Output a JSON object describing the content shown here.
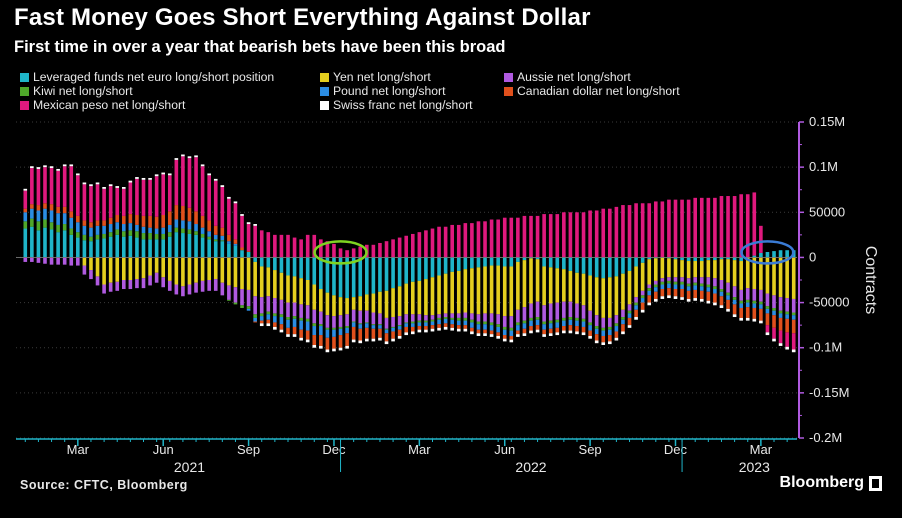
{
  "title": "Fast Money Goes Short Everything Against Dollar",
  "subtitle": "First time in over a year that bearish bets have been this broad",
  "source": "Source: CFTC, Bloomberg",
  "brand": "Bloomberg",
  "chart_data": {
    "type": "bar",
    "stacked": true,
    "ylabel": "Contracts",
    "ylim": [
      -200000,
      150000
    ],
    "y_ticks": [
      {
        "value": 150000,
        "label": "0.15M"
      },
      {
        "value": 100000,
        "label": "0.1M"
      },
      {
        "value": 50000,
        "label": "50000"
      },
      {
        "value": 0,
        "label": "0"
      },
      {
        "value": -50000,
        "label": "-50000"
      },
      {
        "value": -100000,
        "label": "-0.1M"
      },
      {
        "value": -150000,
        "label": "-0.15M"
      },
      {
        "value": -200000,
        "label": "-0.2M"
      }
    ],
    "x_ticks": [
      "Mar",
      "Jun",
      "Sep",
      "Dec",
      "Mar",
      "Jun",
      "Sep",
      "Dec",
      "Mar"
    ],
    "x_tick_weeks": [
      8,
      21,
      34,
      47,
      60,
      73,
      86,
      99,
      112
    ],
    "years": [
      {
        "label": "2021",
        "week": 25
      },
      {
        "label": "2022",
        "week": 77
      },
      {
        "label": "2023",
        "week": 111
      }
    ],
    "year_boundaries": [
      48,
      100
    ],
    "annotations": [
      {
        "shape": "ellipse",
        "color": "#7ed321",
        "week": 48
      },
      {
        "shape": "ellipse",
        "color": "#3a7bd5",
        "week": 113
      }
    ],
    "series": [
      {
        "name": "Leveraged funds net euro long/short position",
        "color": "#1fb5c9",
        "values": [
          32000,
          34000,
          30000,
          33000,
          31000,
          28000,
          30000,
          25000,
          22000,
          19000,
          18000,
          20000,
          21000,
          23000,
          25000,
          23000,
          24000,
          22000,
          20000,
          20000,
          20000,
          20000,
          23000,
          28000,
          27000,
          26000,
          25000,
          22000,
          20000,
          18000,
          18000,
          15000,
          13000,
          8000,
          6000,
          -5000,
          -10000,
          -11000,
          -14000,
          -17000,
          -20000,
          -21000,
          -23000,
          -25000,
          -30000,
          -35000,
          -39000,
          -42000,
          -44000,
          -45000,
          -44000,
          -43000,
          -41000,
          -40000,
          -38000,
          -37000,
          -34000,
          -32000,
          -29000,
          -27000,
          -26000,
          -24000,
          -22000,
          -20000,
          -18000,
          -16000,
          -15000,
          -13000,
          -12000,
          -11000,
          -10000,
          -9000,
          -9000,
          -10000,
          -10000,
          -5000,
          -3000,
          -1000,
          -2000,
          -10000,
          -11000,
          -12000,
          -13000,
          -15000,
          -17000,
          -18000,
          -20000,
          -22000,
          -23000,
          -22000,
          -21000,
          -18000,
          -15000,
          -10000,
          -6000,
          -2000,
          -1000,
          0,
          -1000,
          -2000,
          -3000,
          -4000,
          -4000,
          -4000,
          -3000,
          -3000,
          -2000,
          -2000,
          -3000,
          -4000,
          0,
          2000,
          5000,
          6000,
          7000,
          8000,
          8000,
          8000
        ]
      },
      {
        "name": "Yen net long/short",
        "color": "#e4cf1f",
        "values": [
          0,
          0,
          0,
          0,
          0,
          0,
          0,
          0,
          0,
          -9000,
          -14000,
          -21000,
          -30000,
          -28000,
          -27000,
          -25000,
          -25000,
          -24000,
          -23000,
          -20000,
          -17000,
          -22000,
          -26000,
          -30000,
          -32000,
          -30000,
          -28000,
          -26000,
          -25000,
          -24000,
          -28000,
          -31000,
          -33000,
          -35000,
          -36000,
          -38000,
          -34000,
          -32000,
          -31000,
          -30000,
          -30000,
          -29000,
          -29000,
          -28000,
          -28000,
          -25000,
          -25000,
          -23000,
          -20000,
          -18000,
          -14000,
          -16000,
          -18000,
          -21000,
          -24000,
          -30000,
          -32000,
          -33000,
          -34000,
          -36000,
          -37000,
          -40000,
          -42000,
          -43000,
          -44000,
          -46000,
          -47000,
          -48000,
          -50000,
          -52000,
          -52000,
          -53000,
          -54000,
          -55000,
          -55000,
          -53000,
          -52000,
          -50000,
          -47000,
          -43000,
          -40000,
          -38000,
          -36000,
          -34000,
          -34000,
          -35000,
          -39000,
          -42000,
          -44000,
          -45000,
          -43000,
          -40000,
          -37000,
          -34000,
          -31000,
          -28000,
          -25000,
          -23000,
          -21000,
          -20000,
          -19000,
          -19000,
          -18000,
          -18000,
          -19000,
          -20000,
          -23000,
          -26000,
          -29000,
          -32000,
          -34000,
          -35000,
          -36000,
          -40000,
          -42000,
          -44000,
          -45000,
          -46000
        ]
      },
      {
        "name": "Aussie net long/short",
        "color": "#b05ae0",
        "values": [
          -5000,
          -5000,
          -6000,
          -7000,
          -8000,
          -8000,
          -8000,
          -9000,
          -9000,
          -10000,
          -10000,
          -10000,
          -10000,
          -10000,
          -10000,
          -10000,
          -10000,
          -10000,
          -11000,
          -11000,
          -11000,
          -11000,
          -11000,
          -11000,
          -11000,
          -11000,
          -11000,
          -12000,
          -12000,
          -13000,
          -14000,
          -16000,
          -17000,
          -18000,
          -18000,
          -20000,
          -18000,
          -17000,
          -17000,
          -16000,
          -16000,
          -15000,
          -15000,
          -15000,
          -15000,
          -14000,
          -14000,
          -13000,
          -13000,
          -13000,
          -13000,
          -14000,
          -13000,
          -13000,
          -12000,
          -12000,
          -11000,
          -10000,
          -9000,
          -8000,
          -7000,
          -6000,
          -5000,
          -4000,
          -4000,
          -5000,
          -5000,
          -6000,
          -7000,
          -8000,
          -9000,
          -10000,
          -11000,
          -12000,
          -13000,
          -14000,
          -15000,
          -16000,
          -17000,
          -18000,
          -19000,
          -19000,
          -18000,
          -17000,
          -16000,
          -15000,
          -13000,
          -12000,
          -11000,
          -10000,
          -9000,
          -8000,
          -7000,
          -6000,
          -5000,
          -4000,
          -4000,
          -4000,
          -4000,
          -5000,
          -5000,
          -6000,
          -6000,
          -7000,
          -8000,
          -9000,
          -10000,
          -11000,
          -12000,
          -12000,
          -13000,
          -13000,
          -13000,
          -14000,
          -14000,
          -15000,
          -15000,
          -15000
        ]
      },
      {
        "name": "Kiwi net long/short",
        "color": "#4fa82a",
        "values": [
          8000,
          9000,
          10000,
          9000,
          8000,
          8000,
          7000,
          7000,
          6000,
          6000,
          5000,
          5000,
          5000,
          5000,
          6000,
          6000,
          6000,
          7000,
          7000,
          7000,
          6000,
          6000,
          5000,
          5000,
          5000,
          5000,
          4000,
          4000,
          3000,
          2000,
          1000,
          -1000,
          -2000,
          -3000,
          -3000,
          -4000,
          -3000,
          -3000,
          -3000,
          -3000,
          -3000,
          -3000,
          -3000,
          -3000,
          -3000,
          -2000,
          -2000,
          -2000,
          -2000,
          -2000,
          -1000,
          -1000,
          -1000,
          -1000,
          -1000,
          -1000,
          -1000,
          -1000,
          -1000,
          -2000,
          -2000,
          -2000,
          -2000,
          -2000,
          -2000,
          -2000,
          -3000,
          -3000,
          -3000,
          -3000,
          -3000,
          -3000,
          -3000,
          -3000,
          -3000,
          -3000,
          -3000,
          -3000,
          -3000,
          -3000,
          -3000,
          -3000,
          -3000,
          -3000,
          -3000,
          -3000,
          -3000,
          -3000,
          -3000,
          -3000,
          -3000,
          -3000,
          -3000,
          -3000,
          -3000,
          -3000,
          -3000,
          -3000,
          -3000,
          -3000,
          -3000,
          -3000,
          -3000,
          -3000,
          -3000,
          -3000,
          -3000,
          -3000,
          -3000,
          -3000,
          -3000,
          -3000,
          -3000,
          -3000,
          -3000,
          -3000,
          -3000,
          -3000
        ]
      },
      {
        "name": "Pound net long/short",
        "color": "#2b8de3",
        "values": [
          10000,
          11000,
          12000,
          12000,
          13000,
          13000,
          12000,
          12000,
          11000,
          10000,
          10000,
          10000,
          9000,
          9000,
          8000,
          8000,
          8000,
          7000,
          7000,
          6000,
          6000,
          7000,
          8000,
          9000,
          9000,
          9000,
          8000,
          7000,
          6000,
          5000,
          5000,
          3000,
          2000,
          0,
          -2000,
          -4000,
          -5000,
          -6000,
          -7000,
          -8000,
          -9000,
          -9000,
          -10000,
          -10000,
          -10000,
          -10000,
          -9000,
          -8000,
          -7000,
          -6000,
          -5000,
          -5000,
          -5000,
          -4000,
          -4000,
          -4000,
          -4000,
          -4000,
          -4000,
          -4000,
          -4000,
          -4000,
          -4000,
          -5000,
          -5000,
          -5000,
          -5000,
          -5000,
          -6000,
          -6000,
          -6000,
          -6000,
          -6000,
          -6000,
          -6000,
          -6000,
          -6000,
          -6000,
          -6000,
          -6000,
          -6000,
          -6000,
          -6000,
          -6000,
          -6000,
          -6000,
          -6000,
          -6000,
          -6000,
          -6000,
          -6000,
          -5000,
          -5000,
          -5000,
          -5000,
          -5000,
          -5000,
          -5000,
          -5000,
          -5000,
          -5000,
          -5000,
          -5000,
          -5000,
          -5000,
          -5000,
          -5000,
          -5000,
          -5000,
          -5000,
          -5000,
          -5000,
          -5000,
          -5000,
          -5000,
          -5000,
          -5000,
          -5000
        ]
      },
      {
        "name": "Canadian dollar net long/short",
        "color": "#e0501c",
        "values": [
          4000,
          5000,
          6000,
          6000,
          7000,
          7000,
          7000,
          7000,
          7000,
          6000,
          6000,
          6000,
          6000,
          7000,
          8000,
          9000,
          10000,
          11000,
          12000,
          13000,
          13000,
          14000,
          15000,
          16000,
          16000,
          15000,
          14000,
          13000,
          12000,
          10000,
          9000,
          7000,
          5000,
          3000,
          1000,
          -1000,
          -3000,
          -4000,
          -5000,
          -6000,
          -7000,
          -8000,
          -9000,
          -10000,
          -11000,
          -12000,
          -13000,
          -13000,
          -14000,
          -14000,
          -14000,
          -13000,
          -12000,
          -11000,
          -10000,
          -9000,
          -8000,
          -7000,
          -6000,
          -5000,
          -4000,
          -4000,
          -4000,
          -4000,
          -4000,
          -4000,
          -4000,
          -4000,
          -4000,
          -4000,
          -4000,
          -4000,
          -4000,
          -4000,
          -4000,
          -4000,
          -5000,
          -5000,
          -5000,
          -5000,
          -5000,
          -5000,
          -5000,
          -6000,
          -6000,
          -6000,
          -6000,
          -7000,
          -7000,
          -7000,
          -7000,
          -8000,
          -8000,
          -8000,
          -8000,
          -8000,
          -8000,
          -8000,
          -8000,
          -8000,
          -9000,
          -9000,
          -9000,
          -9000,
          -10000,
          -10000,
          -10000,
          -10000,
          -11000,
          -11000,
          -12000,
          -12000,
          -13000,
          -13000,
          -14000,
          -14000,
          -15000,
          -15000
        ]
      },
      {
        "name": "Mexican peso net long/short",
        "color": "#e0197e",
        "values": [
          20000,
          40000,
          40000,
          40000,
          40000,
          40000,
          45000,
          50000,
          45000,
          40000,
          40000,
          40000,
          35000,
          35000,
          30000,
          30000,
          35000,
          40000,
          40000,
          40000,
          45000,
          45000,
          40000,
          50000,
          55000,
          55000,
          60000,
          55000,
          50000,
          50000,
          45000,
          40000,
          40000,
          35000,
          30000,
          35000,
          30000,
          28000,
          25000,
          25000,
          25000,
          22000,
          20000,
          25000,
          25000,
          20000,
          18000,
          15000,
          10000,
          8000,
          10000,
          12000,
          14000,
          14000,
          16000,
          18000,
          20000,
          22000,
          24000,
          26000,
          28000,
          30000,
          32000,
          34000,
          34000,
          36000,
          36000,
          38000,
          38000,
          40000,
          40000,
          42000,
          42000,
          44000,
          44000,
          44000,
          46000,
          46000,
          46000,
          48000,
          48000,
          48000,
          50000,
          50000,
          50000,
          50000,
          52000,
          52000,
          54000,
          54000,
          56000,
          58000,
          58000,
          60000,
          60000,
          60000,
          62000,
          62000,
          64000,
          64000,
          64000,
          64000,
          66000,
          66000,
          66000,
          66000,
          68000,
          68000,
          68000,
          70000,
          70000,
          70000,
          30000,
          -8000,
          -12000,
          -14000,
          -16000,
          -18000
        ]
      },
      {
        "name": "Swiss franc net long/short",
        "color": "#ffffff",
        "values": [
          2000,
          2000,
          2000,
          2000,
          2000,
          2000,
          2000,
          2000,
          2000,
          2000,
          2000,
          2000,
          2000,
          2000,
          2000,
          2000,
          2000,
          2000,
          2000,
          2000,
          2000,
          2000,
          2000,
          2000,
          2000,
          2000,
          2000,
          2000,
          2000,
          2000,
          2000,
          2000,
          2000,
          2000,
          2000,
          2000,
          -3000,
          -3000,
          -3000,
          -3000,
          -3000,
          -3000,
          -3000,
          -3000,
          -3000,
          -3000,
          -3000,
          -3000,
          -3000,
          -3000,
          -3000,
          -3000,
          -3000,
          -3000,
          -3000,
          -3000,
          -3000,
          -3000,
          -3000,
          -3000,
          -3000,
          -3000,
          -3000,
          -3000,
          -3000,
          -3000,
          -3000,
          -3000,
          -3000,
          -3000,
          -3000,
          -3000,
          -3000,
          -3000,
          -3000,
          -3000,
          -3000,
          -3000,
          -3000,
          -3000,
          -3000,
          -3000,
          -3000,
          -3000,
          -3000,
          -3000,
          -3000,
          -3000,
          -3000,
          -3000,
          -3000,
          -3000,
          -3000,
          -3000,
          -3000,
          -3000,
          -3000,
          -3000,
          -3000,
          -3000,
          -3000,
          -3000,
          -3000,
          -3000,
          -3000,
          -3000,
          -3000,
          -3000,
          -3000,
          -3000,
          -3000,
          -3000,
          -3000,
          -3000,
          -3000,
          -3000,
          -3000,
          -3000
        ]
      }
    ]
  }
}
